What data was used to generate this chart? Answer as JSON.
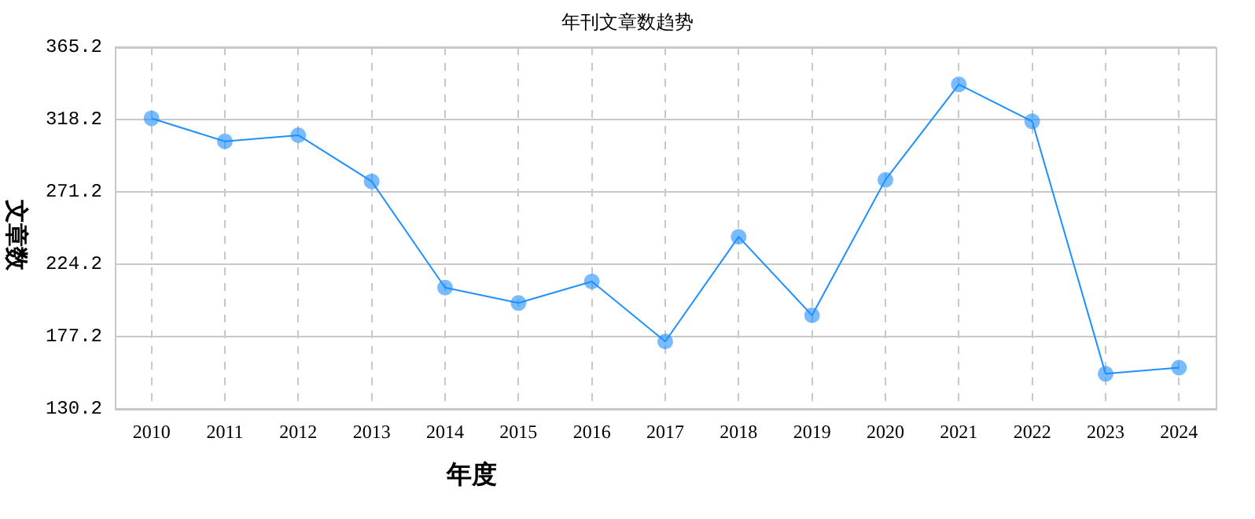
{
  "chart_data": {
    "type": "line",
    "title": "年刊文章数趋势",
    "xlabel": "年度",
    "ylabel": "文章数",
    "categories": [
      "2010",
      "2011",
      "2012",
      "2013",
      "2014",
      "2015",
      "2016",
      "2017",
      "2018",
      "2019",
      "2020",
      "2021",
      "2022",
      "2023",
      "2024"
    ],
    "series": [
      {
        "color": "#1e90ff",
        "values": [
          319,
          304,
          308,
          278,
          209,
          199,
          213,
          174,
          242,
          191,
          279,
          341,
          317,
          153,
          157
        ]
      }
    ],
    "ylim": [
      130.2,
      365.2
    ],
    "yticks": [
      130.2,
      177.2,
      224.2,
      271.2,
      318.2,
      365.2
    ],
    "grid": true,
    "marker": "circle",
    "line_style": "solid",
    "legend": false
  }
}
